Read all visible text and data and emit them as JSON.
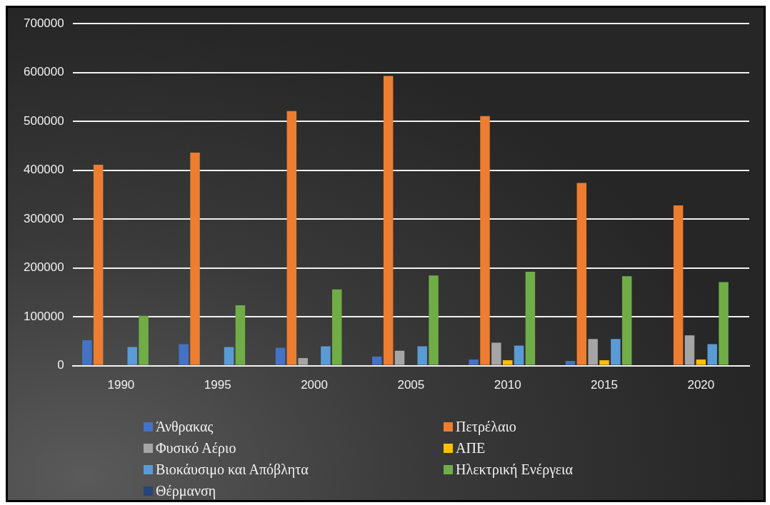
{
  "chart_data": {
    "type": "bar",
    "categories": [
      "1990",
      "1995",
      "2000",
      "2005",
      "2010",
      "2015",
      "2020"
    ],
    "series": [
      {
        "name": "Άνθρακας",
        "color": "#4472c4",
        "values": [
          52000,
          44000,
          36500,
          18500,
          12500,
          9500,
          0
        ]
      },
      {
        "name": "Πετρέλαιο",
        "color": "#ed7d31",
        "values": [
          411000,
          436000,
          521000,
          593000,
          511000,
          374000,
          328000
        ]
      },
      {
        "name": "Φυσικό Αέριο",
        "color": "#a5a5a5",
        "values": [
          0,
          0,
          15500,
          30500,
          47000,
          54500,
          62000
        ]
      },
      {
        "name": "ΑΠΕ",
        "color": "#ffc000",
        "values": [
          0,
          0,
          0,
          0,
          11000,
          11000,
          12500
        ]
      },
      {
        "name": "Βιοκάυσιμο και Απόβλητα",
        "color": "#5b9bd5",
        "values": [
          38000,
          38000,
          39500,
          39500,
          41000,
          54500,
          44000
        ]
      },
      {
        "name": "Ηλεκτρική Ενέργεια",
        "color": "#70ad47",
        "values": [
          102000,
          123500,
          156000,
          184500,
          192000,
          183000,
          171000
        ]
      },
      {
        "name": "Θέρμανση",
        "color": "#264478",
        "values": [
          0,
          0,
          0,
          0,
          0,
          0,
          0
        ]
      }
    ],
    "ylim": [
      0,
      700000
    ],
    "yticks": [
      0,
      100000,
      200000,
      300000,
      400000,
      500000,
      600000,
      700000
    ],
    "grid": "y",
    "legend": "bottom"
  }
}
